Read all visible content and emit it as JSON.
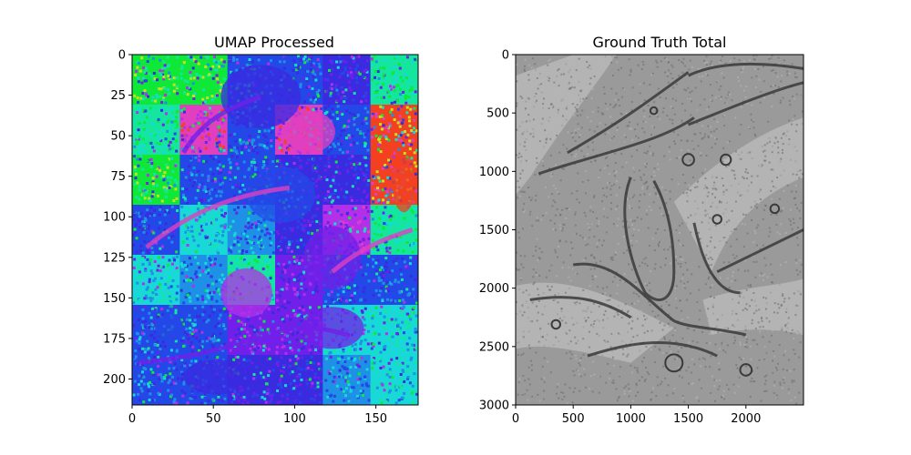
{
  "chart_data": [
    {
      "type": "heatmap",
      "title": "UMAP Processed",
      "xlabel": "",
      "ylabel": "",
      "xlim": [
        0,
        176
      ],
      "ylim": [
        216,
        0
      ],
      "x_ticks": [
        0,
        50,
        100,
        150
      ],
      "y_ticks": [
        0,
        25,
        50,
        75,
        100,
        125,
        150,
        175,
        200
      ],
      "palette": [
        "#10e838",
        "#14e6a0",
        "#18d8d8",
        "#1e90e6",
        "#2448e8",
        "#3a2ae0",
        "#7020e8",
        "#b430e8",
        "#e040c0",
        "#f24020",
        "#c8e020"
      ],
      "tile_grid": {
        "cols": 6,
        "rows": 7
      }
    },
    {
      "type": "heatmap",
      "title": "Ground Truth Total",
      "xlabel": "",
      "ylabel": "",
      "xlim": [
        0,
        2500
      ],
      "ylim": [
        3000,
        0
      ],
      "x_ticks": [
        0,
        500,
        1000,
        1500,
        2000
      ],
      "y_ticks": [
        0,
        500,
        1000,
        1500,
        2000,
        2500,
        3000
      ],
      "palette": [
        "#3a3a3a",
        "#6e6e6e",
        "#9a9a9a",
        "#b8b8b8",
        "#cfcfcf"
      ]
    }
  ]
}
